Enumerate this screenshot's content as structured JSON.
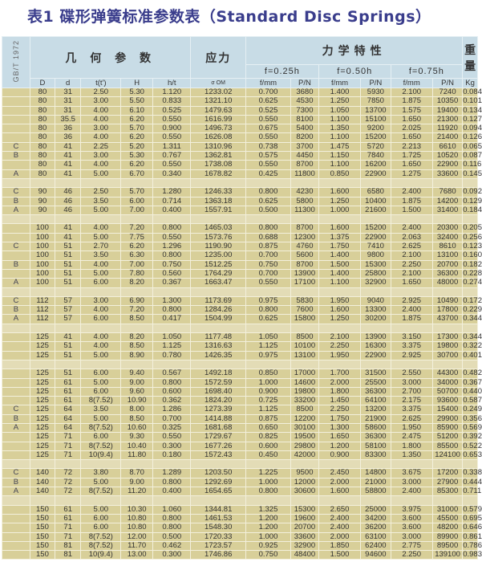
{
  "title": "表1  碟形弹簧标准参数表（Standard Disc Springs）",
  "header": {
    "standard": "GB/T 1972",
    "geometry": "几 何 参 数",
    "stress": "应力",
    "mechanics": "力学特性",
    "weight": "重量",
    "f025": "f=0.25h",
    "f050": "f=0.50h",
    "f075": "f=0.75h",
    "columns": [
      "D",
      "d",
      "t(t')",
      "H",
      "h/t",
      "σ OM",
      "f/mm",
      "P/N",
      "f/mm",
      "P/N",
      "f/mm",
      "P/N",
      "Kg"
    ]
  },
  "rows": [
    [
      "",
      "80",
      "31",
      "2.50",
      "5.30",
      "1.120",
      "1233.02",
      "0.700",
      "3680",
      "1.400",
      "5930",
      "2.100",
      "7240",
      "0.084"
    ],
    [
      "",
      "80",
      "31",
      "3.00",
      "5.50",
      "0.833",
      "1321.10",
      "0.625",
      "4530",
      "1.250",
      "7850",
      "1.875",
      "10350",
      "0.101"
    ],
    [
      "",
      "80",
      "31",
      "4.00",
      "6.10",
      "0.525",
      "1479.63",
      "0.525",
      "7300",
      "1.050",
      "13700",
      "1.575",
      "19400",
      "0.134"
    ],
    [
      "",
      "80",
      "35.5",
      "4.00",
      "6.20",
      "0.550",
      "1616.99",
      "0.550",
      "8100",
      "1.100",
      "15100",
      "1.650",
      "21300",
      "0.127"
    ],
    [
      "",
      "80",
      "36",
      "3.00",
      "5.70",
      "0.900",
      "1496.73",
      "0.675",
      "5400",
      "1.350",
      "9200",
      "2.025",
      "11920",
      "0.094"
    ],
    [
      "",
      "80",
      "36",
      "4.00",
      "6.20",
      "0.550",
      "1626.08",
      "0.550",
      "8200",
      "1.100",
      "15200",
      "1.650",
      "21400",
      "0.126"
    ],
    [
      "C",
      "80",
      "41",
      "2.25",
      "5.20",
      "1.311",
      "1310.96",
      "0.738",
      "3700",
      "1.475",
      "5720",
      "2.213",
      "6610",
      "0.065"
    ],
    [
      "B",
      "80",
      "41",
      "3.00",
      "5.30",
      "0.767",
      "1362.81",
      "0.575",
      "4450",
      "1.150",
      "7840",
      "1.725",
      "10520",
      "0.087"
    ],
    [
      "",
      "80",
      "41",
      "4.00",
      "6.20",
      "0.550",
      "1738.08",
      "0.550",
      "8700",
      "1.100",
      "16200",
      "1.650",
      "22900",
      "0.116"
    ],
    [
      "A",
      "80",
      "41",
      "5.00",
      "6.70",
      "0.340",
      "1678.82",
      "0.425",
      "11800",
      "0.850",
      "22900",
      "1.275",
      "33600",
      "0.145"
    ],
    [],
    [
      "C",
      "90",
      "46",
      "2.50",
      "5.70",
      "1.280",
      "1246.33",
      "0.800",
      "4230",
      "1.600",
      "6580",
      "2.400",
      "7680",
      "0.092"
    ],
    [
      "B",
      "90",
      "46",
      "3.50",
      "6.00",
      "0.714",
      "1363.18",
      "0.625",
      "5800",
      "1.250",
      "10400",
      "1.875",
      "14200",
      "0.129"
    ],
    [
      "A",
      "90",
      "46",
      "5.00",
      "7.00",
      "0.400",
      "1557.91",
      "0.500",
      "11300",
      "1.000",
      "21600",
      "1.500",
      "31400",
      "0.184"
    ],
    [],
    [
      "",
      "100",
      "41",
      "4.00",
      "7.20",
      "0.800",
      "1465.03",
      "0.800",
      "8700",
      "1.600",
      "15200",
      "2.400",
      "20300",
      "0.205"
    ],
    [
      "",
      "100",
      "41",
      "5.00",
      "7.75",
      "0.550",
      "1573.76",
      "0.688",
      "12300",
      "1.375",
      "22900",
      "2.063",
      "32400",
      "0.256"
    ],
    [
      "C",
      "100",
      "51",
      "2.70",
      "6.20",
      "1.296",
      "1190.90",
      "0.875",
      "4760",
      "1.750",
      "7410",
      "2.625",
      "8610",
      "0.123"
    ],
    [
      "",
      "100",
      "51",
      "3.50",
      "6.30",
      "0.800",
      "1235.00",
      "0.700",
      "5600",
      "1.400",
      "9800",
      "2.100",
      "13100",
      "0.160"
    ],
    [
      "B",
      "100",
      "51",
      "4.00",
      "7.00",
      "0.750",
      "1512.25",
      "0.750",
      "8700",
      "1.500",
      "15300",
      "2.250",
      "20700",
      "0.182"
    ],
    [
      "",
      "100",
      "51",
      "5.00",
      "7.80",
      "0.560",
      "1764.29",
      "0.700",
      "13900",
      "1.400",
      "25800",
      "2.100",
      "36300",
      "0.228"
    ],
    [
      "A",
      "100",
      "51",
      "6.00",
      "8.20",
      "0.367",
      "1663.47",
      "0.550",
      "17100",
      "1.100",
      "32900",
      "1.650",
      "48000",
      "0.274"
    ],
    [],
    [
      "C",
      "112",
      "57",
      "3.00",
      "6.90",
      "1.300",
      "1173.69",
      "0.975",
      "5830",
      "1.950",
      "9040",
      "2.925",
      "10490",
      "0.172"
    ],
    [
      "B",
      "112",
      "57",
      "4.00",
      "7.20",
      "0.800",
      "1284.26",
      "0.800",
      "7600",
      "1.600",
      "13300",
      "2.400",
      "17800",
      "0.229"
    ],
    [
      "A",
      "112",
      "57",
      "6.00",
      "8.50",
      "0.417",
      "1504.99",
      "0.625",
      "15800",
      "1.250",
      "30200",
      "1.875",
      "43700",
      "0.344"
    ],
    [],
    [
      "",
      "125",
      "41",
      "4.00",
      "8.20",
      "1.050",
      "1177.48",
      "1.050",
      "8500",
      "2.100",
      "13900",
      "3.150",
      "17300",
      "0.344"
    ],
    [
      "",
      "125",
      "51",
      "4.00",
      "8.50",
      "1.125",
      "1316.63",
      "1.125",
      "10100",
      "2.250",
      "16300",
      "3.375",
      "19800",
      "0.322"
    ],
    [
      "",
      "125",
      "51",
      "5.00",
      "8.90",
      "0.780",
      "1426.35",
      "0.975",
      "13100",
      "1.950",
      "22900",
      "2.925",
      "30700",
      "0.401"
    ],
    [],
    [
      "",
      "125",
      "51",
      "6.00",
      "9.40",
      "0.567",
      "1492.18",
      "0.850",
      "17000",
      "1.700",
      "31500",
      "2.550",
      "44300",
      "0.482"
    ],
    [
      "",
      "125",
      "61",
      "5.00",
      "9.00",
      "0.800",
      "1572.59",
      "1.000",
      "14600",
      "2.000",
      "25500",
      "3.000",
      "34000",
      "0.367"
    ],
    [
      "",
      "125",
      "61",
      "6.00",
      "9.60",
      "0.600",
      "1698.40",
      "0.900",
      "19800",
      "1.800",
      "36300",
      "2.700",
      "50700",
      "0.440"
    ],
    [
      "",
      "125",
      "61",
      "8(7.52)",
      "10.90",
      "0.362",
      "1824.20",
      "0.725",
      "33200",
      "1.450",
      "64100",
      "2.175",
      "93600",
      "0.587"
    ],
    [
      "C",
      "125",
      "64",
      "3.50",
      "8.00",
      "1.286",
      "1273.39",
      "1.125",
      "8500",
      "2.250",
      "13200",
      "3.375",
      "15400",
      "0.249"
    ],
    [
      "B",
      "125",
      "64",
      "5.00",
      "8.50",
      "0.700",
      "1414.88",
      "0.875",
      "12200",
      "1.750",
      "21900",
      "2.625",
      "29900",
      "0.356"
    ],
    [
      "A",
      "125",
      "64",
      "8(7.52)",
      "10.60",
      "0.325",
      "1681.68",
      "0.650",
      "30100",
      "1.300",
      "58600",
      "1.950",
      "85900",
      "0.569"
    ],
    [
      "",
      "125",
      "71",
      "6.00",
      "9.30",
      "0.550",
      "1729.67",
      "0.825",
      "19500",
      "1.650",
      "36300",
      "2.475",
      "51200",
      "0.392"
    ],
    [
      "",
      "125",
      "71",
      "8(7.52)",
      "10.40",
      "0.300",
      "1677.26",
      "0.600",
      "29800",
      "1.200",
      "58100",
      "1.800",
      "85500",
      "0.522"
    ],
    [
      "",
      "125",
      "71",
      "10(9.4)",
      "11.80",
      "0.180",
      "1572.43",
      "0.450",
      "42000",
      "0.900",
      "83300",
      "1.350",
      "124100",
      "0.653"
    ],
    [],
    [
      "C",
      "140",
      "72",
      "3.80",
      "8.70",
      "1.289",
      "1203.50",
      "1.225",
      "9500",
      "2.450",
      "14800",
      "3.675",
      "17200",
      "0.338"
    ],
    [
      "B",
      "140",
      "72",
      "5.00",
      "9.00",
      "0.800",
      "1292.69",
      "1.000",
      "12000",
      "2.000",
      "21000",
      "3.000",
      "27900",
      "0.444"
    ],
    [
      "A",
      "140",
      "72",
      "8(7.52)",
      "11.20",
      "0.400",
      "1654.65",
      "0.800",
      "30600",
      "1.600",
      "58800",
      "2.400",
      "85300",
      "0.711"
    ],
    [],
    [
      "",
      "150",
      "61",
      "5.00",
      "10.30",
      "1.060",
      "1344.81",
      "1.325",
      "15300",
      "2.650",
      "25000",
      "3.975",
      "31000",
      "0.579"
    ],
    [
      "",
      "150",
      "61",
      "6.00",
      "10.80",
      "0.800",
      "1461.53",
      "1.200",
      "19600",
      "2.400",
      "34200",
      "3.600",
      "45500",
      "0.695"
    ],
    [
      "",
      "150",
      "71",
      "6.00",
      "10.80",
      "0.800",
      "1548.30",
      "1.200",
      "20700",
      "2.400",
      "36200",
      "3.600",
      "48200",
      "0.646"
    ],
    [
      "",
      "150",
      "71",
      "8(7.52)",
      "12.00",
      "0.500",
      "1720.33",
      "1.000",
      "33600",
      "2.000",
      "63100",
      "3.000",
      "89900",
      "0.861"
    ],
    [
      "",
      "150",
      "81",
      "8(7.52)",
      "11.70",
      "0.462",
      "1723.57",
      "0.925",
      "32900",
      "1.850",
      "62400",
      "2.775",
      "89500",
      "0.786"
    ],
    [
      "",
      "150",
      "81",
      "10(9.4)",
      "13.00",
      "0.300",
      "1746.86",
      "0.750",
      "48400",
      "1.500",
      "94600",
      "2.250",
      "139100",
      "0.983"
    ]
  ]
}
